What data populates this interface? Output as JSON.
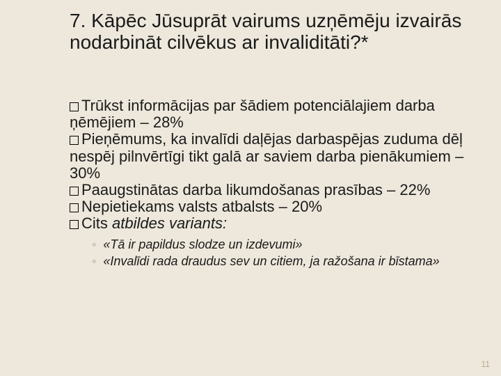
{
  "colors": {
    "background": "#eee8dc",
    "text": "#1a1a1a",
    "subBullet": "#a88f6f",
    "pageNumber": "#b9a98c"
  },
  "title": "7. Kāpēc Jūsuprāt vairums uzņēmēju izvairās nodarbināt cilvēkus ar invaliditāti?*",
  "bullets": [
    "Trūkst informācijas par šādiem potenciālajiem darba ņēmējiem – 28%",
    "Pieņēmums, ka invalīdi daļējas darbaspējas zuduma dēļ nespēj pilnvērtīgi tikt galā ar saviem darba pienākumiem – 30%",
    "Paaugstinātas darba likumdošanas prasības – 22%",
    "Nepietiekams valsts atbalsts – 20%"
  ],
  "otherLabel": "Cits",
  "otherSuffix": " atbildes variants:",
  "subItems": [
    "«Tā ir papildus slodze un izdevumi»",
    "«Invalīdi rada draudus sev un citiem, ja ražošana ir bīstama»"
  ],
  "pageNumber": "11",
  "typography": {
    "titleFontSize": 28,
    "bulletFontSize": 22,
    "subFontSize": 18,
    "pageNumFontSize": 12
  }
}
